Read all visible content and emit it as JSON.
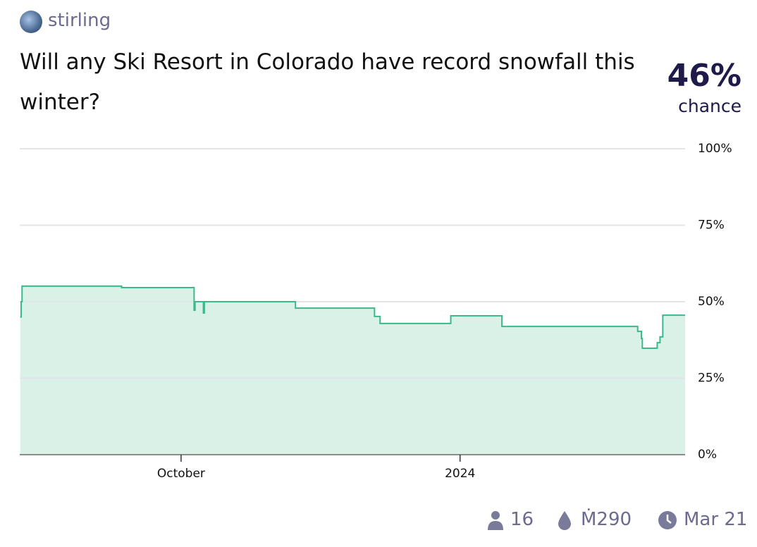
{
  "header": {
    "author": "stirling",
    "title": "Will any Ski Resort in Colorado have record snowfall this winter?",
    "probability": "46%",
    "probability_caption": "chance"
  },
  "chart_data": {
    "type": "step-area",
    "x": [
      8.27,
      8.28,
      8.29,
      9.36,
      10.14,
      10.15,
      10.24,
      10.25,
      11.23,
      12.08,
      12.14,
      12.9,
      13.45,
      14.91,
      14.95,
      14.96,
      15.12,
      15.15,
      15.18,
      15.42
    ],
    "values": [
      45,
      50,
      55.1,
      54.6,
      47.2,
      50,
      46.3,
      50,
      47.9,
      45.2,
      42.9,
      45.4,
      41.9,
      40.3,
      38,
      34.8,
      36.6,
      38.5,
      45.6,
      45.6
    ],
    "color": "#3ab98a",
    "fill": "#d9f1e7",
    "xlim": [
      8.265,
      15.42
    ],
    "xticks": [
      {
        "value": 10,
        "label": "October"
      },
      {
        "value": 13,
        "label": "2024"
      }
    ],
    "ylim": [
      0,
      100
    ],
    "yticks": [
      {
        "value": 0,
        "label": "0%"
      },
      {
        "value": 25,
        "label": "25%"
      },
      {
        "value": 50,
        "label": "50%"
      },
      {
        "value": 75,
        "label": "75%"
      },
      {
        "value": 100,
        "label": "100%"
      }
    ],
    "grid": true
  },
  "footer": {
    "traders": "16",
    "volume": "Ṁ290",
    "close_date": "Mar 21"
  }
}
